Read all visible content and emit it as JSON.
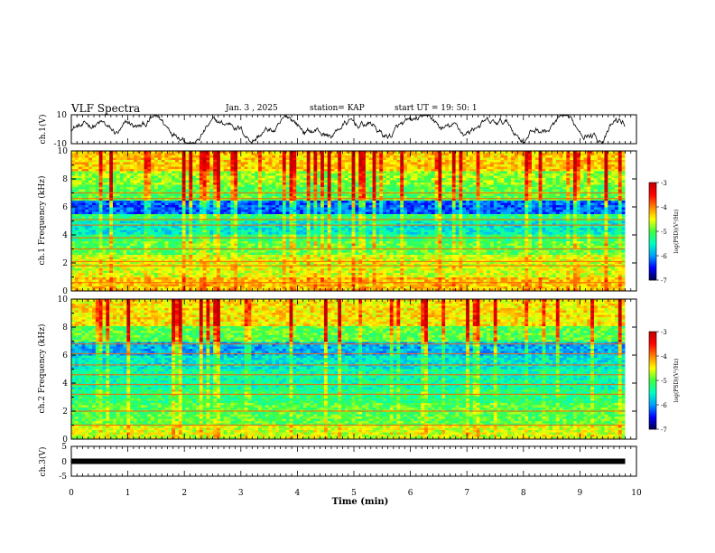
{
  "header": {
    "title": "VLF Spectra",
    "date": "Jan. 3 , 2025",
    "station": "station= KAP",
    "start_ut": "start UT = 19: 50: 1"
  },
  "chart_data": [
    {
      "type": "line",
      "name": "ch1-waveform",
      "ylabel": "ch.1(V)",
      "ylim": [
        -10,
        10
      ],
      "yticks": [
        "10",
        "-10"
      ],
      "xlim": [
        0,
        10
      ],
      "note": "noisy waveform between roughly -8 V and +8 V across 0 to 9.8 min"
    },
    {
      "type": "heatmap",
      "name": "ch1-spectrogram",
      "ylabel": "ch.1 Frequency (kHz)",
      "ylim": [
        0,
        10
      ],
      "yticks": [
        "0",
        "2",
        "4",
        "6",
        "8",
        "10"
      ],
      "xlim": [
        0,
        9.8
      ],
      "colorbar": {
        "label": "log(PSD)(V²/Hz)",
        "range": [
          -7,
          -3
        ],
        "ticks": [
          "-3",
          "-4",
          "-5",
          "-6",
          "-7"
        ]
      },
      "bands_logpsd": [
        {
          "from": 0.0,
          "to": 1.0,
          "value": -4.3
        },
        {
          "from": 1.0,
          "to": 2.5,
          "value": -4.6
        },
        {
          "from": 2.5,
          "to": 3.5,
          "value": -5.0
        },
        {
          "from": 3.5,
          "to": 4.0,
          "value": -5.2
        },
        {
          "from": 4.0,
          "to": 5.0,
          "value": -5.6
        },
        {
          "from": 5.0,
          "to": 5.5,
          "value": -5.2
        },
        {
          "from": 5.5,
          "to": 6.5,
          "value": -6.2
        },
        {
          "from": 6.5,
          "to": 7.5,
          "value": -5.0
        },
        {
          "from": 7.5,
          "to": 8.5,
          "value": -4.8
        },
        {
          "from": 8.5,
          "to": 10.0,
          "value": -4.3
        }
      ],
      "lines_khz": [
        0.6,
        1.8,
        2.1,
        3.0,
        3.8,
        4.7,
        5.1,
        6.6,
        7.0
      ]
    },
    {
      "type": "heatmap",
      "name": "ch2-spectrogram",
      "ylabel": "ch.2 Frequency (kHz)",
      "ylim": [
        0,
        10
      ],
      "yticks": [
        "0",
        "2",
        "4",
        "6",
        "8",
        "10"
      ],
      "xlim": [
        0,
        9.8
      ],
      "colorbar": {
        "label": "log(PSD)(V²/Hz)",
        "range": [
          -7,
          -3
        ],
        "ticks": [
          "-3",
          "-4",
          "-5",
          "-6",
          "-7"
        ]
      },
      "bands_logpsd": [
        {
          "from": 0.0,
          "to": 1.0,
          "value": -4.6
        },
        {
          "from": 1.0,
          "to": 2.5,
          "value": -5.0
        },
        {
          "from": 2.5,
          "to": 3.5,
          "value": -5.2
        },
        {
          "from": 3.5,
          "to": 5.0,
          "value": -5.4
        },
        {
          "from": 5.0,
          "to": 6.0,
          "value": -5.6
        },
        {
          "from": 6.0,
          "to": 7.0,
          "value": -5.9
        },
        {
          "from": 7.0,
          "to": 8.0,
          "value": -5.0
        },
        {
          "from": 8.0,
          "to": 10.0,
          "value": -4.4
        }
      ],
      "lines_khz": [
        1.0,
        2.0,
        3.2,
        3.9,
        4.6,
        5.3,
        6.1,
        6.8
      ]
    },
    {
      "type": "line",
      "name": "ch3-waveform",
      "ylabel": "ch.3(V)",
      "ylim": [
        -5,
        5
      ],
      "yticks": [
        "5",
        "0",
        "-5"
      ],
      "xlim": [
        0,
        10
      ],
      "level_v": 0,
      "note": "flat thick trace near 0 V from 0 to 9.8 min"
    }
  ],
  "x_axis": {
    "label": "Time (min)",
    "ticks": [
      "0",
      "1",
      "2",
      "3",
      "4",
      "5",
      "6",
      "7",
      "8",
      "9",
      "10"
    ]
  },
  "colormap": [
    "#00004d",
    "#0000ff",
    "#00a0ff",
    "#00ffc0",
    "#40ff40",
    "#ffff00",
    "#ff8000",
    "#ff0000",
    "#c00000"
  ]
}
